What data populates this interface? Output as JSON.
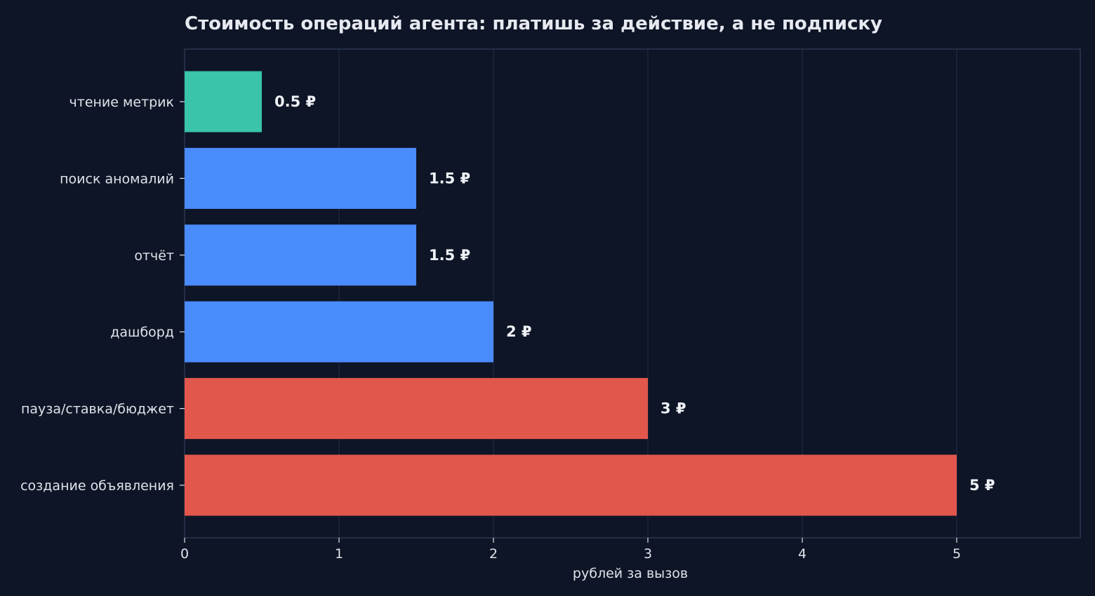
{
  "chart_data": {
    "type": "bar",
    "orientation": "horizontal",
    "title": "Стоимость операций агента: платишь за действие, а не подписку",
    "xlabel": "рублей за вызов",
    "ylabel": "",
    "xlim": [
      0,
      5.8
    ],
    "x_ticks": [
      "0",
      "1",
      "2",
      "3",
      "4",
      "5"
    ],
    "grid": "vertical",
    "categories": [
      "чтение метрик",
      "поиск аномалий",
      "отчёт",
      "дашборд",
      "пауза/ставка/бюджет",
      "создание объявления"
    ],
    "values": [
      0.5,
      1.5,
      1.5,
      2,
      3,
      5
    ],
    "value_labels": [
      "0.5 ₽",
      "1.5 ₽",
      "1.5 ₽",
      "2 ₽",
      "3 ₽",
      "5 ₽"
    ],
    "bar_colors": [
      "#3ac4aa",
      "#4a8bfe",
      "#4a8bfe",
      "#4a8bfe",
      "#e2574c",
      "#e2574c"
    ]
  },
  "colors": {
    "background": "#0e1526",
    "plot_border": "#2a3850",
    "grid": "#1f2b40",
    "text": "#dfe3ea",
    "title": "#e6e9f0"
  }
}
